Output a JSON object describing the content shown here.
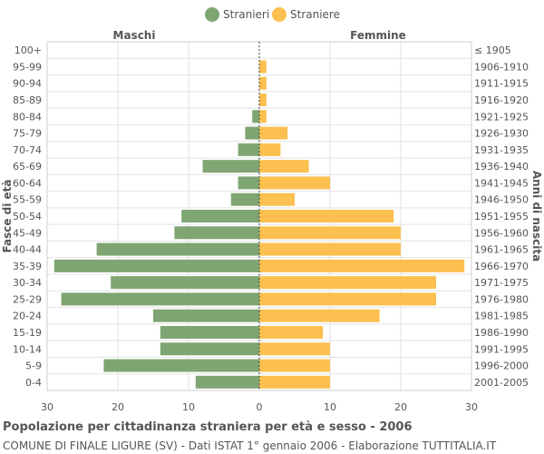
{
  "chart_data": {
    "type": "bar",
    "orientation": "horizontal-population-pyramid",
    "title": "Popolazione per cittadinanza straniera per età e sesso - 2006",
    "subtitle": "COMUNE DI FINALE LIGURE (SV) - Dati ISTAT 1° gennaio 2006 - Elaborazione TUTTITALIA.IT",
    "left_header": "Maschi",
    "right_header": "Femmine",
    "ylabel_left": "Fasce di età",
    "ylabel_right": "Anni di nascita",
    "xlim": [
      -30,
      30
    ],
    "x_ticks": [
      "30",
      "20",
      "10",
      "0",
      "10",
      "20",
      "30"
    ],
    "grid": true,
    "legend_position": "top-center",
    "age_groups": [
      "100+",
      "95-99",
      "90-94",
      "85-89",
      "80-84",
      "75-79",
      "70-74",
      "65-69",
      "60-64",
      "55-59",
      "50-54",
      "45-49",
      "40-44",
      "35-39",
      "30-34",
      "25-29",
      "20-24",
      "15-19",
      "10-14",
      "5-9",
      "0-4"
    ],
    "birth_years": [
      "≤ 1905",
      "1906-1910",
      "1911-1915",
      "1916-1920",
      "1921-1925",
      "1926-1930",
      "1931-1935",
      "1936-1940",
      "1941-1945",
      "1946-1950",
      "1951-1955",
      "1956-1960",
      "1961-1965",
      "1966-1970",
      "1971-1975",
      "1976-1980",
      "1981-1985",
      "1986-1990",
      "1991-1995",
      "1996-2000",
      "2001-2005"
    ],
    "series": [
      {
        "name": "Stranieri",
        "color": "#7fa572",
        "values": [
          0,
          0,
          0,
          0,
          1,
          2,
          3,
          8,
          3,
          4,
          11,
          12,
          23,
          29,
          21,
          28,
          15,
          14,
          14,
          22,
          9
        ]
      },
      {
        "name": "Straniere",
        "color": "#fbc04f",
        "values": [
          0,
          1,
          1,
          1,
          1,
          4,
          3,
          7,
          10,
          5,
          19,
          20,
          20,
          29,
          25,
          25,
          17,
          9,
          10,
          10,
          10
        ]
      }
    ]
  }
}
